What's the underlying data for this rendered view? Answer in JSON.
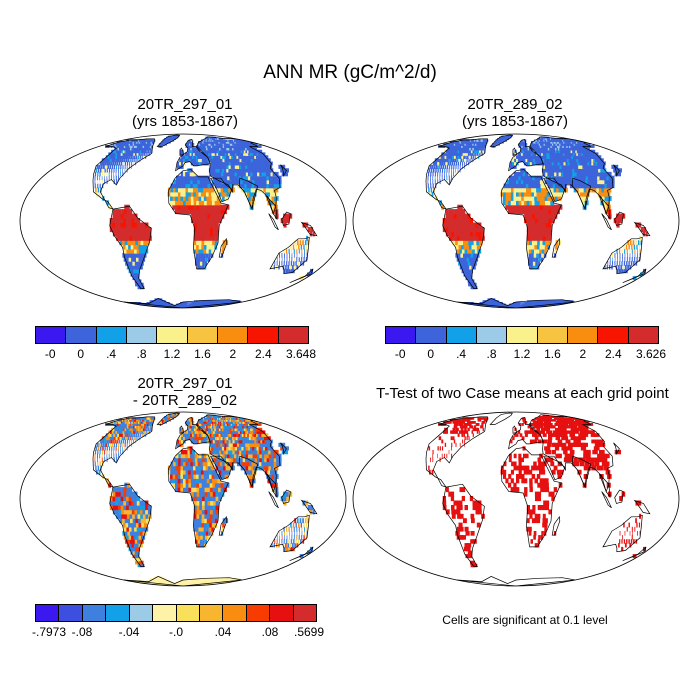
{
  "title": "ANN MR (gC/m^2/d)",
  "panels": [
    {
      "title": "20TR_297_01\n(yrs 1853-1867)"
    },
    {
      "title": "20TR_289_02\n(yrs 1853-1867)"
    },
    {
      "title": "20TR_297_01\n- 20TR_289_02"
    },
    {
      "title": "T-Test of two Case means at each grid point"
    }
  ],
  "colorbars": [
    {
      "labels": [
        "-0",
        "0",
        ".4",
        ".8",
        "1.2",
        "1.6",
        "2",
        "2.4",
        "3.648"
      ],
      "colors": [
        "#3b18f0",
        "#3d64da",
        "#12a0e8",
        "#9ccbe8",
        "#fbf18c",
        "#f7c442",
        "#f98d10",
        "#f71500",
        "#d42c2c"
      ]
    },
    {
      "labels": [
        "-0",
        "0",
        ".4",
        ".8",
        "1.2",
        "1.6",
        "2",
        "2.4",
        "3.626"
      ],
      "colors": [
        "#3b18f0",
        "#3d64da",
        "#12a0e8",
        "#9ccbe8",
        "#fbf18c",
        "#f7c442",
        "#f98d10",
        "#f71500",
        "#d42c2c"
      ]
    },
    {
      "labels": [
        "-.7973",
        "-.08",
        "-.04",
        "-.0",
        ".04",
        ".08",
        ".5699"
      ],
      "colors": [
        "#3b18f0",
        "#3d4fe0",
        "#3d80e0",
        "#12a0e8",
        "#9ccbe8",
        "#fdf2a8",
        "#f8e05a",
        "#f7b530",
        "#f98d10",
        "#f73c00",
        "#e61010",
        "#d42c2c"
      ]
    }
  ],
  "note": "Cells are significant at 0.1 level",
  "map_colors": {
    "land_mr": "#3d64da",
    "tropics_mr": "#d42c2c",
    "diff_neutral": "#fdf2a8",
    "significant": "#e61010",
    "ocean": "#ffffff"
  }
}
